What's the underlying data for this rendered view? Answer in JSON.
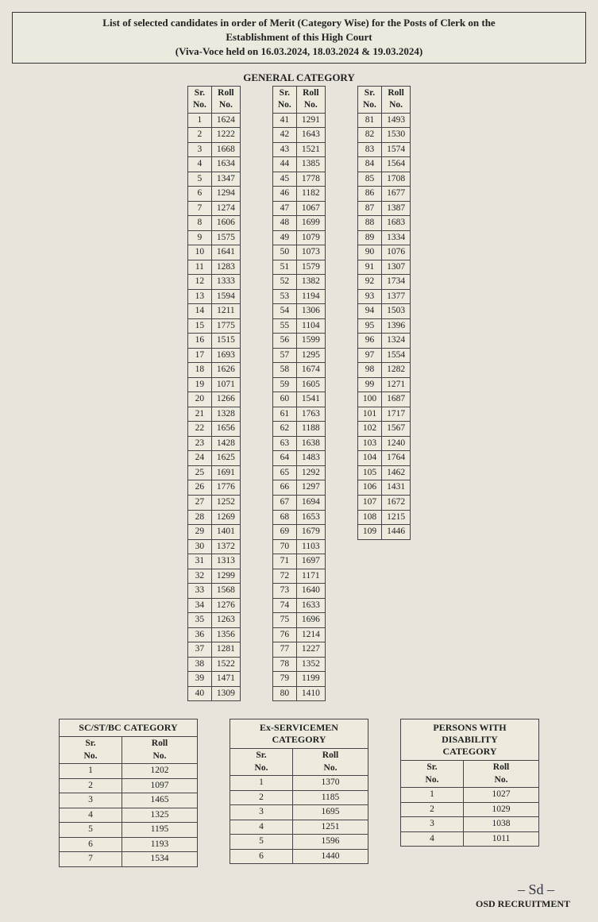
{
  "title_line1": "List of selected candidates in order of Merit (Category Wise) for the Posts of Clerk on the",
  "title_line2": "Establishment of this High Court",
  "title_line3": "(Viva-Voce held on 16.03.2024, 18.03.2024 & 19.03.2024)",
  "general_category_label": "GENERAL CATEGORY",
  "headers": {
    "sr": "Sr.",
    "no": "No.",
    "roll": "Roll"
  },
  "general_col1": [
    [
      1,
      1624
    ],
    [
      2,
      1222
    ],
    [
      3,
      1668
    ],
    [
      4,
      1634
    ],
    [
      5,
      1347
    ],
    [
      6,
      1294
    ],
    [
      7,
      1274
    ],
    [
      8,
      1606
    ],
    [
      9,
      1575
    ],
    [
      10,
      1641
    ],
    [
      11,
      1283
    ],
    [
      12,
      1333
    ],
    [
      13,
      1594
    ],
    [
      14,
      1211
    ],
    [
      15,
      1775
    ],
    [
      16,
      1515
    ],
    [
      17,
      1693
    ],
    [
      18,
      1626
    ],
    [
      19,
      1071
    ],
    [
      20,
      1266
    ],
    [
      21,
      1328
    ],
    [
      22,
      1656
    ],
    [
      23,
      1428
    ],
    [
      24,
      1625
    ],
    [
      25,
      1691
    ],
    [
      26,
      1776
    ],
    [
      27,
      1252
    ],
    [
      28,
      1269
    ],
    [
      29,
      1401
    ],
    [
      30,
      1372
    ],
    [
      31,
      1313
    ],
    [
      32,
      1299
    ],
    [
      33,
      1568
    ],
    [
      34,
      1276
    ],
    [
      35,
      1263
    ],
    [
      36,
      1356
    ],
    [
      37,
      1281
    ],
    [
      38,
      1522
    ],
    [
      39,
      1471
    ],
    [
      40,
      1309
    ]
  ],
  "general_col2": [
    [
      41,
      1291
    ],
    [
      42,
      1643
    ],
    [
      43,
      1521
    ],
    [
      44,
      1385
    ],
    [
      45,
      1778
    ],
    [
      46,
      1182
    ],
    [
      47,
      1067
    ],
    [
      48,
      1699
    ],
    [
      49,
      1079
    ],
    [
      50,
      1073
    ],
    [
      51,
      1579
    ],
    [
      52,
      1382
    ],
    [
      53,
      1194
    ],
    [
      54,
      1306
    ],
    [
      55,
      1104
    ],
    [
      56,
      1599
    ],
    [
      57,
      1295
    ],
    [
      58,
      1674
    ],
    [
      59,
      1605
    ],
    [
      60,
      1541
    ],
    [
      61,
      1763
    ],
    [
      62,
      1188
    ],
    [
      63,
      1638
    ],
    [
      64,
      1483
    ],
    [
      65,
      1292
    ],
    [
      66,
      1297
    ],
    [
      67,
      1694
    ],
    [
      68,
      1653
    ],
    [
      69,
      1679
    ],
    [
      70,
      1103
    ],
    [
      71,
      1697
    ],
    [
      72,
      1171
    ],
    [
      73,
      1640
    ],
    [
      74,
      1633
    ],
    [
      75,
      1696
    ],
    [
      76,
      1214
    ],
    [
      77,
      1227
    ],
    [
      78,
      1352
    ],
    [
      79,
      1199
    ],
    [
      80,
      1410
    ]
  ],
  "general_col3": [
    [
      81,
      1493
    ],
    [
      82,
      1530
    ],
    [
      83,
      1574
    ],
    [
      84,
      1564
    ],
    [
      85,
      1708
    ],
    [
      86,
      1677
    ],
    [
      87,
      1387
    ],
    [
      88,
      1683
    ],
    [
      89,
      1334
    ],
    [
      90,
      1076
    ],
    [
      91,
      1307
    ],
    [
      92,
      1734
    ],
    [
      93,
      1377
    ],
    [
      94,
      1503
    ],
    [
      95,
      1396
    ],
    [
      96,
      1324
    ],
    [
      97,
      1554
    ],
    [
      98,
      1282
    ],
    [
      99,
      1271
    ],
    [
      100,
      1687
    ],
    [
      101,
      1717
    ],
    [
      102,
      1567
    ],
    [
      103,
      1240
    ],
    [
      104,
      1764
    ],
    [
      105,
      1462
    ],
    [
      106,
      1431
    ],
    [
      107,
      1672
    ],
    [
      108,
      1215
    ],
    [
      109,
      1446
    ]
  ],
  "scstbc_label": "SC/ST/BC CATEGORY",
  "scstbc": [
    [
      1,
      1202
    ],
    [
      2,
      1097
    ],
    [
      3,
      1465
    ],
    [
      4,
      1325
    ],
    [
      5,
      1195
    ],
    [
      6,
      1193
    ],
    [
      7,
      1534
    ]
  ],
  "exserv_label": "Ex-SERVICEMEN CATEGORY",
  "exserv": [
    [
      1,
      1370
    ],
    [
      2,
      1185
    ],
    [
      3,
      1695
    ],
    [
      4,
      1251
    ],
    [
      5,
      1596
    ],
    [
      6,
      1440
    ]
  ],
  "pwd_label": "PERSONS WITH DISABILITY CATEGORY",
  "pwd": [
    [
      1,
      1027
    ],
    [
      2,
      1029
    ],
    [
      3,
      1038
    ],
    [
      4,
      1011
    ]
  ],
  "signature": "– Sd –",
  "osd": "OSD RECRUITMENT"
}
